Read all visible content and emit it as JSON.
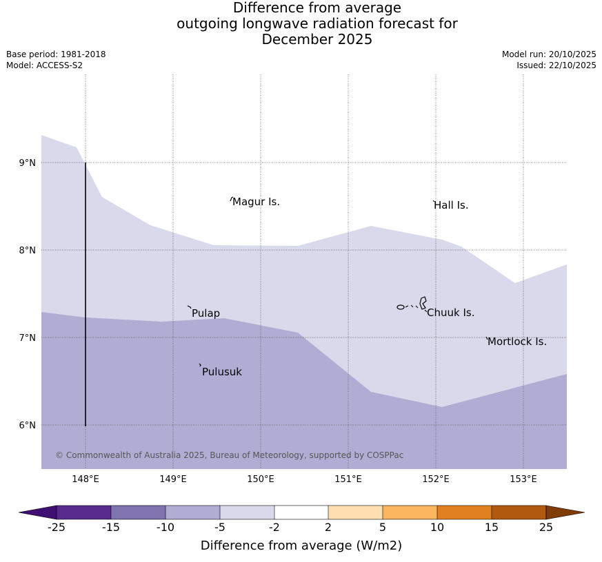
{
  "title": {
    "line1": "Difference from average",
    "line2": "outgoing longwave radiation forecast for",
    "line3": "December 2025"
  },
  "meta": {
    "base_period": "Base period: 1981-2018",
    "model": "Model: ACCESS-S2",
    "model_run": "Model run: 20/10/2025",
    "issued": "Issued: 22/10/2025"
  },
  "map": {
    "lon_labels": [
      "148°E",
      "149°E",
      "150°E",
      "151°E",
      "152°E",
      "153°E"
    ],
    "lat_labels": [
      "9°N",
      "8°N",
      "7°N",
      "6°N"
    ],
    "places": {
      "magur": "Magur Is.",
      "hall": "Hall Is.",
      "pulap": "Pulap",
      "chuuk": "Chuuk Is.",
      "mortlock": "Mortlock Is.",
      "pulusuk": "Pulusuk"
    },
    "copyright": "© Commonwealth of Australia 2025, Bureau of Meteorology, supported by COSPPac",
    "fill_colors": {
      "band_neg5_neg2": "#d8d9ea",
      "band_neg10_neg5": "#b1acd3"
    }
  },
  "colorbar": {
    "title": "Difference from average (W/m2)",
    "ticks": [
      "-25",
      "-15",
      "-10",
      "-5",
      "-2",
      "2",
      "5",
      "10",
      "15",
      "25"
    ],
    "colors": [
      "#3f0f72",
      "#582a8e",
      "#7f73b0",
      "#b1acd3",
      "#d8d9ea",
      "#ffffff",
      "#fddfb0",
      "#fbb55f",
      "#e0801f",
      "#b05a0f",
      "#7f3b08"
    ]
  }
}
